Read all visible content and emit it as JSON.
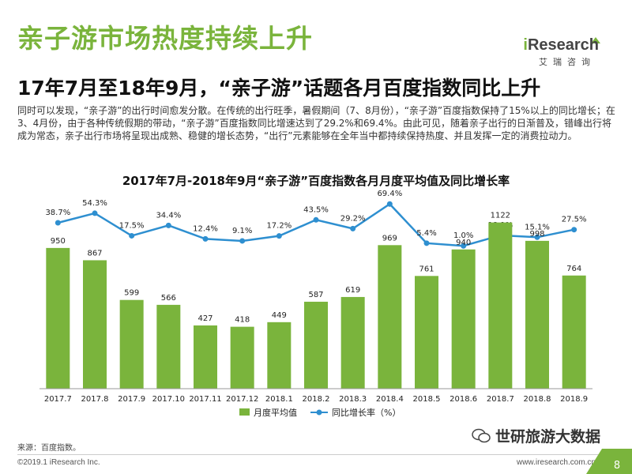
{
  "title": "亲子游市场热度持续上升",
  "logo": {
    "brand_i": "i",
    "brand_rest": "Research",
    "sub": "艾瑞咨询"
  },
  "subtitle": "17年7月至18年9月，“亲子游”话题各月百度指数同比上升",
  "paragraph": "同时可以发现，“亲子游”的出行时间愈发分散。在传统的出行旺季，暑假期间（7、8月份），“亲子游”百度指数保持了15%以上的同比增长；在3、4月份，由于各种传统假期的带动，“亲子游”百度指数同比增速达到了29.2%和69.4%。由此可见，随着亲子出行的日渐普及，错峰出行将成为常态，亲子出行市场将呈现出成熟、稳健的增长态势，“出行”元素能够在全年当中都持续保持热度、并且发挥一定的消费拉动力。",
  "chart_title": "2017年7月-2018年9月“亲子游”百度指数各月月度平均值及同比增长率",
  "chart_data": {
    "type": "bar",
    "categories": [
      "2017.7",
      "2017.8",
      "2017.9",
      "2017.10",
      "2017.11",
      "2017.12",
      "2018.1",
      "2018.2",
      "2018.3",
      "2018.4",
      "2018.5",
      "2018.6",
      "2018.7",
      "2018.8",
      "2018.9"
    ],
    "series": [
      {
        "name": "月度平均值",
        "type": "bar",
        "values": [
          950,
          867,
          599,
          566,
          427,
          418,
          449,
          587,
          619,
          969,
          761,
          940,
          1122,
          998,
          764
        ],
        "color": "#7ab43c"
      },
      {
        "name": "同比增长率（%）",
        "type": "line",
        "values": [
          38.7,
          54.3,
          17.5,
          34.4,
          12.4,
          9.1,
          17.2,
          43.5,
          29.2,
          69.4,
          5.4,
          1.0,
          18.1,
          15.1,
          27.5
        ],
        "labels": [
          "38.7%",
          "54.3%",
          "17.5%",
          "34.4%",
          "12.4%",
          "9.1%",
          "17.2%",
          "43.5%",
          "29.2%",
          "69.4%",
          "5.4%",
          "1.0%",
          "18.1%",
          "15.1%",
          "27.5%"
        ],
        "color": "#2e8fd0"
      }
    ],
    "legend_position": "bottom",
    "grid": false
  },
  "source": "来源：百度指数。",
  "copyright": "©2019.1 iResearch Inc.",
  "website": "www.iresearch.com.cn",
  "page_number": "8",
  "watermark": "世研旅游大数据"
}
